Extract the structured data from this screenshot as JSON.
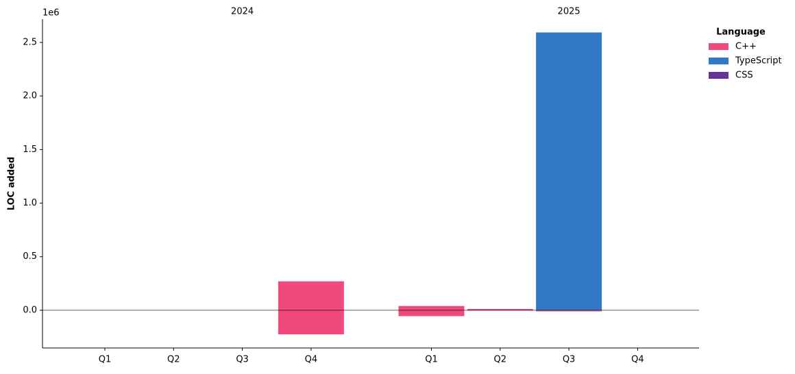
{
  "chart_data": {
    "type": "diverging-bar",
    "y_label": "LOC added",
    "y_offset_label": "1e6",
    "groups": [
      "2024",
      "2025"
    ],
    "categories": [
      "Q1",
      "Q2",
      "Q3",
      "Q4",
      "Q1",
      "Q2",
      "Q3",
      "Q4"
    ],
    "series": [
      {
        "name": "C++",
        "color": "#f04a7c",
        "values": [
          null,
          null,
          null,
          270000,
          40000,
          12000,
          3000,
          null
        ],
        "removed_values": [
          null,
          null,
          null,
          -225000,
          -55000,
          -3000,
          -10000,
          null
        ]
      },
      {
        "name": "TypeScript",
        "color": "#3178c6",
        "values": [
          null,
          null,
          null,
          null,
          null,
          null,
          2590000,
          null
        ],
        "removed_values": [
          null,
          null,
          null,
          null,
          null,
          null,
          null,
          null
        ]
      },
      {
        "name": "CSS",
        "color": "#663399",
        "values": [
          null,
          null,
          null,
          null,
          null,
          null,
          null,
          null
        ],
        "removed_values": [
          null,
          null,
          null,
          null,
          null,
          null,
          null,
          null
        ]
      }
    ],
    "legend_title": "Language",
    "legend_position": "upper right outside",
    "ylim": [
      -352000,
      2717000
    ],
    "yticks": [
      {
        "value": 0,
        "label": "0.0"
      },
      {
        "value": 500000,
        "label": "0.5"
      },
      {
        "value": 1000000,
        "label": "1.0"
      },
      {
        "value": 1500000,
        "label": "1.5"
      },
      {
        "value": 2000000,
        "label": "2.0"
      },
      {
        "value": 2500000,
        "label": "2.5"
      }
    ],
    "zero_line": true
  }
}
